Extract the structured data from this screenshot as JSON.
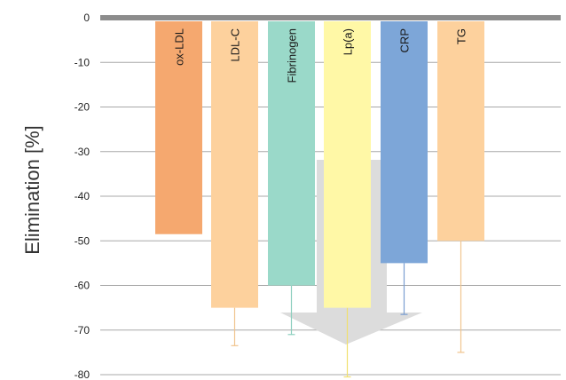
{
  "chart_data": {
    "type": "bar",
    "title": "",
    "xlabel": "",
    "ylabel": "Elimination [%]",
    "ylim": [
      -80,
      0
    ],
    "y_ticks": [
      0,
      -10,
      -20,
      -30,
      -40,
      -50,
      -60,
      -70,
      -80
    ],
    "y_tick_labels": [
      "0",
      "-10",
      "-20",
      "-30",
      "-40",
      "-50",
      "-60",
      "-70",
      "-80"
    ],
    "grid": true,
    "categories": [
      "ox-LDL",
      "LDL-C",
      "Fibrinogen",
      "Lp(a)",
      "CRP",
      "TG"
    ],
    "values": [
      -48.5,
      -65,
      -60,
      -65,
      -55,
      -50
    ],
    "error_low": [
      null,
      -73.5,
      -71,
      -80.5,
      -66.5,
      -75
    ],
    "colors": [
      "#F5A86F",
      "#FDD19D",
      "#9AD9C9",
      "#FFF8A6",
      "#7DA6D8",
      "#FDD19D"
    ],
    "error_colors": [
      "#F5A86F",
      "#F0C48E",
      "#8DCFBF",
      "#F0E070",
      "#7A9ED1",
      "#F0C48E"
    ],
    "arrow_color": "#DCDCDC",
    "zero_line_color": "#8C8C8C",
    "grid_color": "#A8A8A8",
    "label_orientation": "vertical inside bar, near top"
  }
}
